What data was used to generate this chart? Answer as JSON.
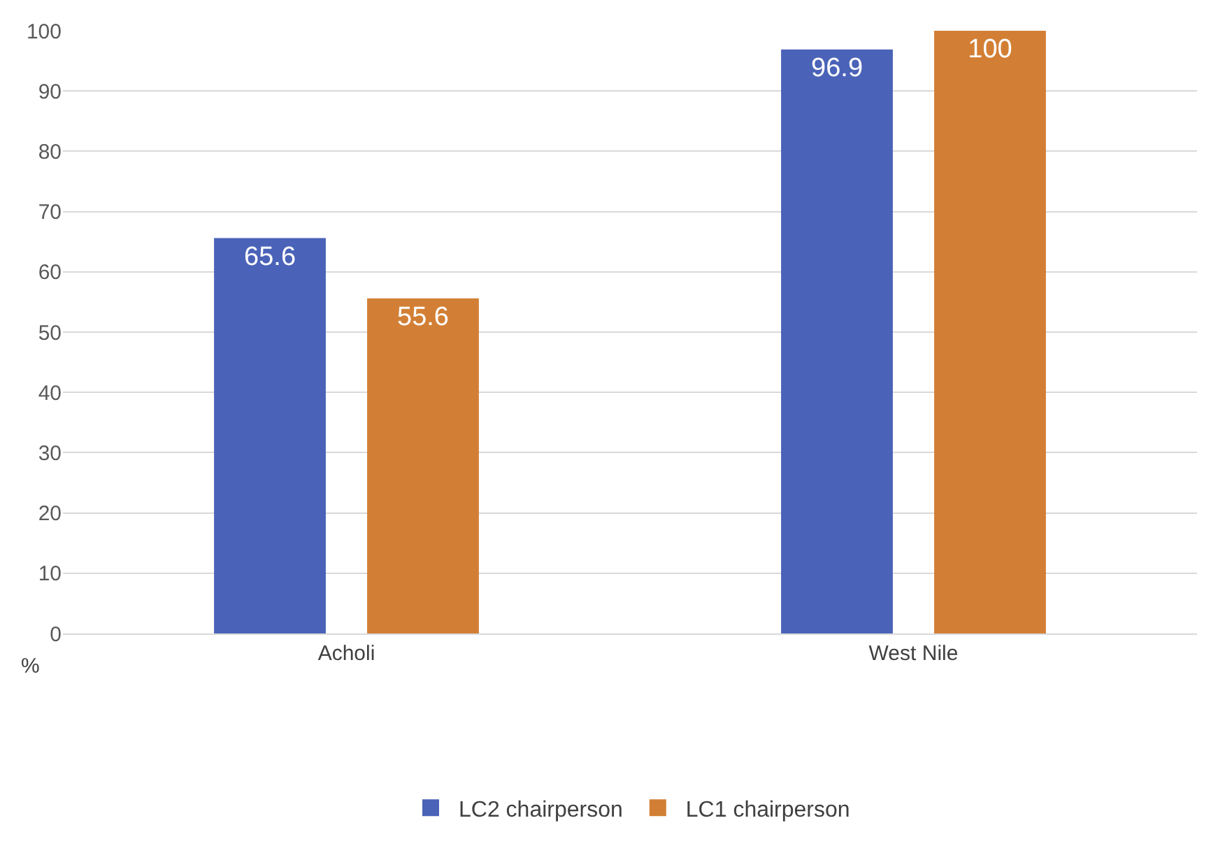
{
  "chart_data": {
    "type": "bar",
    "ylabel": "%",
    "categories": [
      "Acholi",
      "West Nile"
    ],
    "series": [
      {
        "name": "LC2 chairperson",
        "color": "#4a63b8",
        "values": [
          65.6,
          96.9
        ]
      },
      {
        "name": "LC1 chairperson",
        "color": "#d27f35",
        "values": [
          55.6,
          100
        ]
      }
    ],
    "ylim": [
      0,
      100
    ],
    "yticks": [
      0,
      10,
      20,
      30,
      40,
      50,
      60,
      70,
      80,
      90,
      100
    ],
    "grid": "y",
    "legend": "bottom",
    "data_labels": true
  }
}
